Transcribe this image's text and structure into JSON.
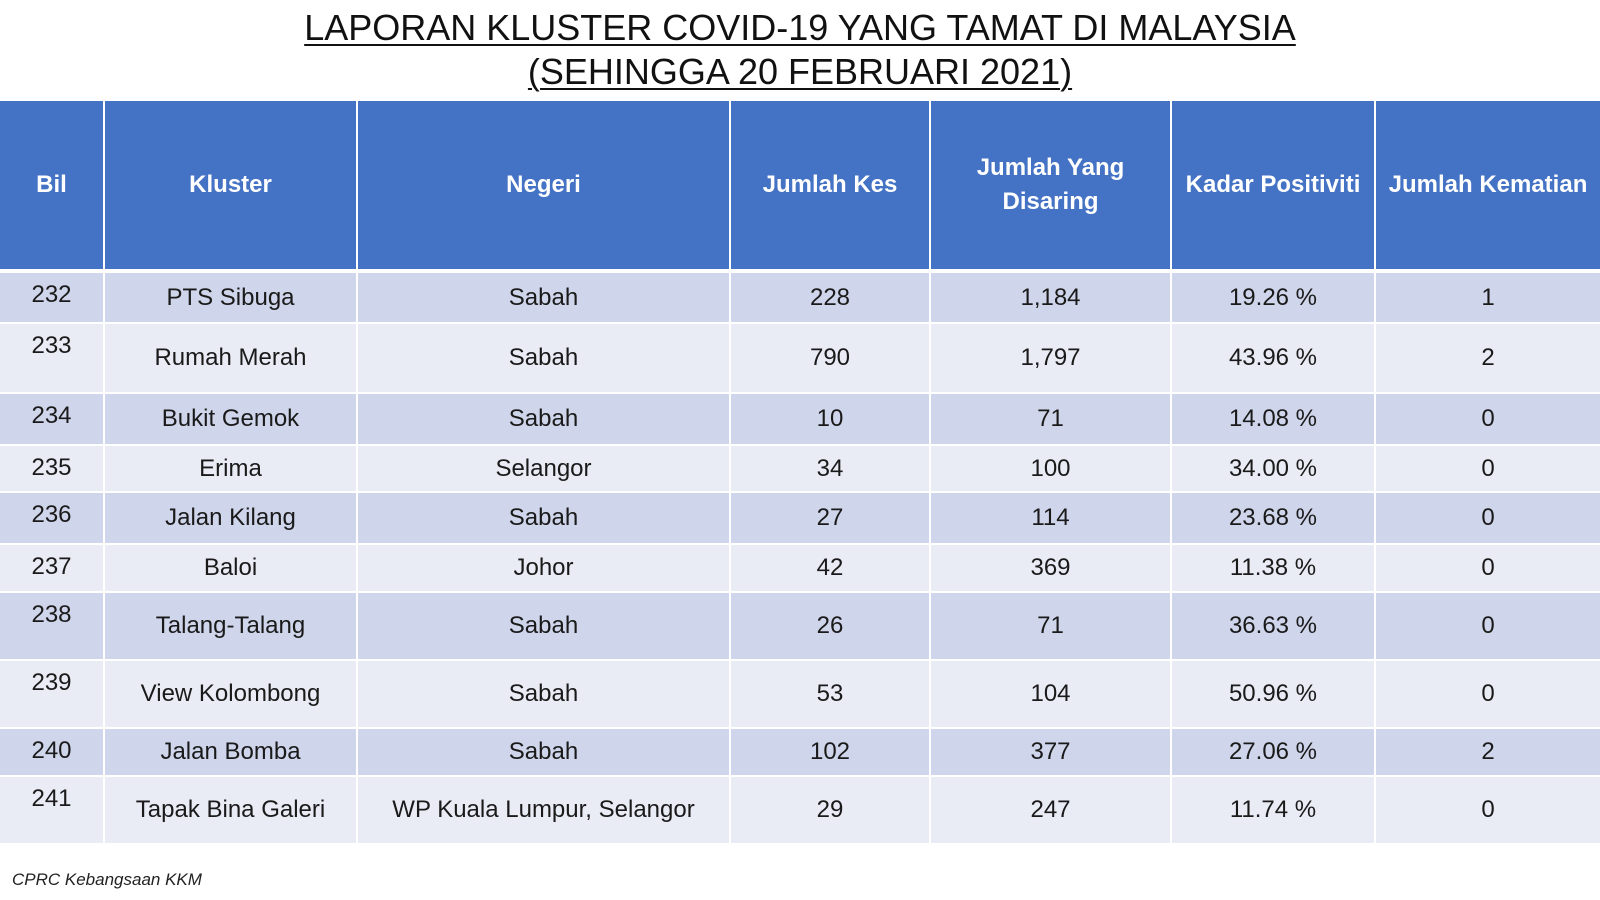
{
  "title": {
    "line1": "LAPORAN KLUSTER COVID-19 YANG TAMAT DI MALAYSIA",
    "line2": "(SEHINGGA  20 FEBRUARI 2021)"
  },
  "table": {
    "headers": {
      "bil": "Bil",
      "kluster": "Kluster",
      "negeri": "Negeri",
      "jumlah_kes": "Jumlah Kes",
      "jumlah_disaring": "Jumlah Yang Disaring",
      "kadar_positiviti": "Kadar Positiviti",
      "jumlah_kematian": "Jumlah Kematian"
    },
    "rows": [
      {
        "bil": "232",
        "kluster": "PTS Sibuga",
        "negeri": "Sabah",
        "kes": "228",
        "disaring": "1,184",
        "positiviti": "19.26 %",
        "kematian": "1"
      },
      {
        "bil": "233",
        "kluster": "Rumah Merah",
        "negeri": "Sabah",
        "kes": "790",
        "disaring": "1,797",
        "positiviti": "43.96 %",
        "kematian": "2"
      },
      {
        "bil": "234",
        "kluster": "Bukit Gemok",
        "negeri": "Sabah",
        "kes": "10",
        "disaring": "71",
        "positiviti": "14.08 %",
        "kematian": "0"
      },
      {
        "bil": "235",
        "kluster": "Erima",
        "negeri": "Selangor",
        "kes": "34",
        "disaring": "100",
        "positiviti": "34.00 %",
        "kematian": "0"
      },
      {
        "bil": "236",
        "kluster": "Jalan Kilang",
        "negeri": "Sabah",
        "kes": "27",
        "disaring": "114",
        "positiviti": "23.68 %",
        "kematian": "0"
      },
      {
        "bil": "237",
        "kluster": "Baloi",
        "negeri": "Johor",
        "kes": "42",
        "disaring": "369",
        "positiviti": "11.38 %",
        "kematian": "0"
      },
      {
        "bil": "238",
        "kluster": "Talang-Talang",
        "negeri": "Sabah",
        "kes": "26",
        "disaring": "71",
        "positiviti": "36.63 %",
        "kematian": "0"
      },
      {
        "bil": "239",
        "kluster": "View Kolombong",
        "negeri": "Sabah",
        "kes": "53",
        "disaring": "104",
        "positiviti": "50.96 %",
        "kematian": "0"
      },
      {
        "bil": "240",
        "kluster": "Jalan Bomba",
        "negeri": "Sabah",
        "kes": "102",
        "disaring": "377",
        "positiviti": "27.06 %",
        "kematian": "2"
      },
      {
        "bil": "241",
        "kluster": "Tapak Bina Galeri",
        "negeri": "WP Kuala Lumpur, Selangor",
        "kes": "29",
        "disaring": "247",
        "positiviti": "11.74 %",
        "kematian": "0"
      }
    ]
  },
  "footer": {
    "source": "CPRC Kebangsaan KKM"
  },
  "colors": {
    "header_bg": "#4472c4",
    "row_dark": "#cfd5ea",
    "row_light": "#e9ebf5"
  }
}
